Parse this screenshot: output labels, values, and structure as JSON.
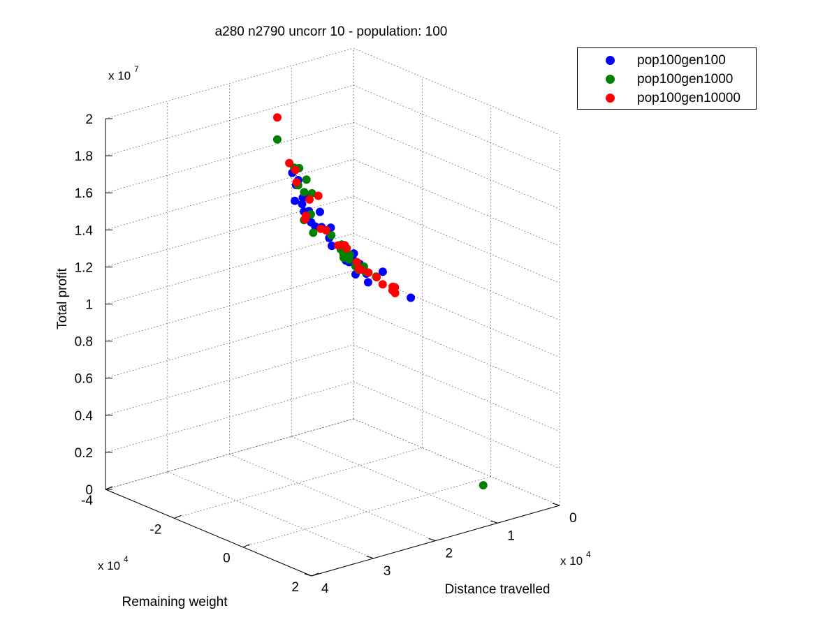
{
  "chart_data": {
    "type": "scatter",
    "title": "a280 n2790 uncorr 10 - population: 100",
    "xlabel": "Distance travelled",
    "ylabel": "Remaining weight",
    "zlabel": "Total profit",
    "x_multiplier": "x 10",
    "x_exponent": "4",
    "y_multiplier": "x 10",
    "y_exponent": "4",
    "z_multiplier": "x 10",
    "z_exponent": "7",
    "xlim": [
      0,
      4
    ],
    "ylim": [
      -4,
      2
    ],
    "zlim": [
      0,
      2
    ],
    "x_ticks": [
      "0",
      "1",
      "2",
      "3",
      "4"
    ],
    "y_ticks": [
      "-4",
      "-2",
      "0",
      "2"
    ],
    "z_ticks": [
      "0",
      "0.2",
      "0.4",
      "0.6",
      "0.8",
      "1",
      "1.2",
      "1.4",
      "1.6",
      "1.8",
      "2"
    ],
    "grid": true,
    "legend_position": "top-right",
    "series": [
      {
        "name": "pop100gen100",
        "color": "#0000ff",
        "points": [
          [
            2.15,
            -1.9,
            1.695
          ],
          [
            2.11,
            -1.8,
            1.66
          ],
          [
            2.2,
            -1.7,
            1.65
          ],
          [
            2.19,
            -1.52,
            1.595
          ],
          [
            2.32,
            -1.52,
            1.59
          ],
          [
            2.15,
            -1.45,
            1.605
          ],
          [
            2.28,
            -1.38,
            1.58
          ],
          [
            2.35,
            -1.2,
            1.56
          ],
          [
            2.27,
            -1.2,
            1.555
          ],
          [
            2.31,
            -1.1,
            1.545
          ],
          [
            2.12,
            -1.15,
            1.54
          ],
          [
            2.4,
            -0.9,
            1.53
          ],
          [
            2.26,
            -0.85,
            1.495
          ],
          [
            2.25,
            -0.6,
            1.51
          ],
          [
            2.5,
            -0.6,
            1.54
          ],
          [
            2.33,
            -0.5,
            1.47
          ],
          [
            2.4,
            -0.3,
            1.45
          ],
          [
            2.39,
            0.0,
            1.46
          ],
          [
            2.37,
            0.25,
            1.42
          ],
          [
            2.42,
            0.3,
            1.42
          ],
          [
            2.48,
            0.35,
            1.42
          ],
          [
            2.32,
            0.2,
            1.44
          ],
          [
            2.56,
            0.4,
            1.44
          ],
          [
            2.42,
            0.55,
            1.42
          ],
          [
            2.45,
            0.8,
            1.39
          ],
          [
            2.59,
            1.1,
            1.38
          ],
          [
            2.57,
            0.7,
            1.39
          ],
          [
            2.15,
            1.55,
            1.29
          ],
          [
            2.27,
            0.95,
            1.395
          ]
        ]
      },
      {
        "name": "pop100gen1000",
        "color": "#008000",
        "points": [
          [
            2.06,
            -2.5,
            1.82
          ],
          [
            2.12,
            -1.9,
            1.72
          ],
          [
            2.04,
            -1.9,
            1.71
          ],
          [
            2.06,
            -1.65,
            1.67
          ],
          [
            2.25,
            -1.55,
            1.665
          ],
          [
            2.18,
            -1.5,
            1.625
          ],
          [
            2.11,
            -1.4,
            1.62
          ],
          [
            2.35,
            -1.0,
            1.56
          ],
          [
            2.46,
            -1.0,
            1.54
          ],
          [
            2.45,
            -0.75,
            1.49
          ],
          [
            2.27,
            -0.55,
            1.475
          ],
          [
            2.21,
            -0.35,
            1.435
          ],
          [
            2.31,
            -0.2,
            1.43
          ],
          [
            2.35,
            -0.05,
            1.42
          ],
          [
            2.22,
            -0.1,
            1.4
          ],
          [
            2.43,
            0.1,
            1.42
          ],
          [
            2.4,
            0.2,
            1.415
          ],
          [
            2.3,
            0.25,
            1.395
          ],
          [
            2.38,
            0.35,
            1.39
          ],
          [
            2.27,
            0.4,
            1.38
          ],
          [
            2.35,
            0.45,
            1.38
          ],
          [
            2.44,
            0.55,
            1.39
          ],
          [
            2.33,
            0.55,
            1.37
          ],
          [
            2.21,
            0.65,
            1.34
          ],
          [
            0.4,
            0.5,
            0.03
          ]
        ]
      },
      {
        "name": "pop100gen10000",
        "color": "#ff0000",
        "points": [
          [
            1.81,
            -2.95,
            1.88
          ],
          [
            2.06,
            -2.15,
            1.72
          ],
          [
            1.99,
            -2.1,
            1.68
          ],
          [
            2.22,
            -1.65,
            1.67
          ],
          [
            1.98,
            -1.45,
            1.59
          ],
          [
            2.15,
            -1.4,
            1.59
          ],
          [
            2.43,
            -1.0,
            1.56
          ],
          [
            2.47,
            -0.95,
            1.55
          ],
          [
            2.33,
            -0.75,
            1.5
          ],
          [
            2.27,
            -0.7,
            1.49
          ],
          [
            2.22,
            -0.25,
            1.44
          ],
          [
            2.27,
            -0.1,
            1.44
          ],
          [
            2.35,
            -0.2,
            1.455
          ],
          [
            2.3,
            0.25,
            1.395
          ],
          [
            2.38,
            0.45,
            1.38
          ],
          [
            2.28,
            0.55,
            1.36
          ],
          [
            2.45,
            0.65,
            1.4
          ],
          [
            2.37,
            0.95,
            1.375
          ],
          [
            2.13,
            1.05,
            1.305
          ],
          [
            2.22,
            1.15,
            1.325
          ],
          [
            2.32,
            1.4,
            1.32
          ],
          [
            2.39,
            1.45,
            1.345
          ],
          [
            2.41,
            1.2,
            1.36
          ]
        ]
      }
    ]
  }
}
